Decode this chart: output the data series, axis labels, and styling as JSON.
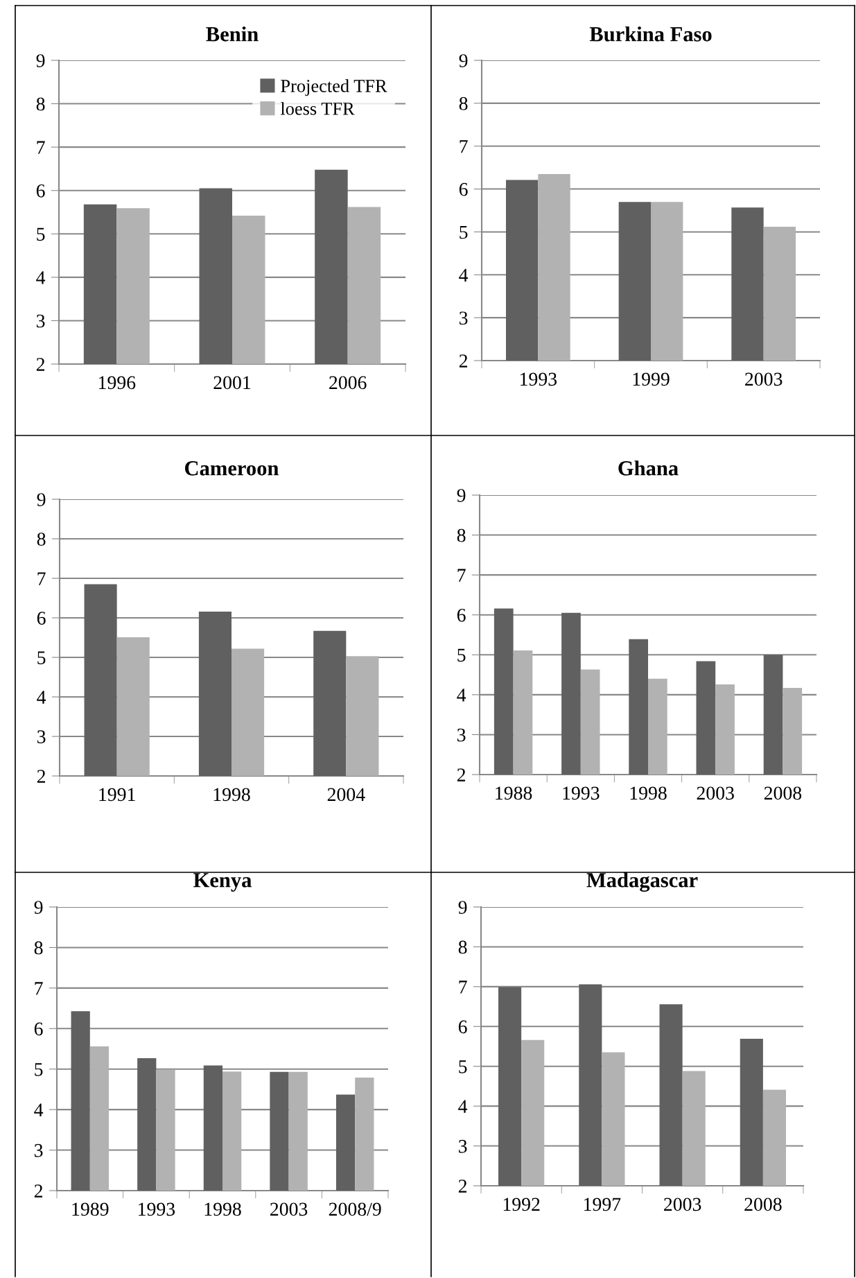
{
  "chart_data": [
    {
      "type": "bar",
      "title": "Benin",
      "categories": [
        "1996",
        "2001",
        "2006"
      ],
      "series": [
        {
          "name": "Projected TFR",
          "color": "#606060",
          "values": [
            5.68,
            6.05,
            6.48
          ]
        },
        {
          "name": "loess TFR",
          "color": "#b2b2b2",
          "values": [
            5.59,
            5.42,
            5.62
          ]
        }
      ],
      "ylim": [
        2,
        9
      ],
      "yticks": [
        2,
        3,
        4,
        5,
        6,
        7,
        8,
        9
      ],
      "grid": "y",
      "legend": "top right"
    },
    {
      "type": "bar",
      "title": "Burkina Faso",
      "categories": [
        "1993",
        "1999",
        "2003"
      ],
      "series": [
        {
          "color": "#606060",
          "values": [
            6.21,
            5.7,
            5.57
          ]
        },
        {
          "color": "#b2b2b2",
          "values": [
            6.35,
            5.7,
            5.12
          ]
        }
      ],
      "ylim": [
        2,
        9
      ],
      "yticks": [
        2,
        3,
        4,
        5,
        6,
        7,
        8,
        9
      ],
      "grid": "y"
    },
    {
      "type": "bar",
      "title": "Cameroon",
      "categories": [
        "1991",
        "1998",
        "2004"
      ],
      "series": [
        {
          "color": "#606060",
          "values": [
            6.85,
            6.16,
            5.67
          ]
        },
        {
          "color": "#b2b2b2",
          "values": [
            5.51,
            5.22,
            5.03
          ]
        }
      ],
      "ylim": [
        2,
        9
      ],
      "yticks": [
        2,
        3,
        4,
        5,
        6,
        7,
        8,
        9
      ],
      "grid": "y"
    },
    {
      "type": "bar",
      "title": "Ghana",
      "categories": [
        "1988",
        "1993",
        "1998",
        "2003",
        "2008"
      ],
      "series": [
        {
          "color": "#606060",
          "values": [
            6.16,
            6.05,
            5.39,
            4.84,
            5.0
          ]
        },
        {
          "color": "#b2b2b2",
          "values": [
            5.11,
            4.63,
            4.4,
            4.26,
            4.17
          ]
        }
      ],
      "ylim": [
        2,
        9
      ],
      "yticks": [
        2,
        3,
        4,
        5,
        6,
        7,
        8,
        9
      ],
      "grid": "y"
    },
    {
      "type": "bar",
      "title": "Kenya",
      "categories": [
        "1989",
        "1993",
        "1998",
        "2003",
        "2008/9"
      ],
      "series": [
        {
          "color": "#606060",
          "values": [
            6.43,
            5.27,
            5.09,
            4.93,
            4.37
          ]
        },
        {
          "color": "#b2b2b2",
          "values": [
            5.56,
            4.98,
            4.94,
            4.93,
            4.79
          ]
        }
      ],
      "ylim": [
        2,
        9
      ],
      "yticks": [
        2,
        3,
        4,
        5,
        6,
        7,
        8,
        9
      ],
      "grid": "y"
    },
    {
      "type": "bar",
      "title": "Madagascar",
      "categories": [
        "1992",
        "1997",
        "2003",
        "2008"
      ],
      "series": [
        {
          "color": "#606060",
          "values": [
            6.99,
            7.06,
            6.56,
            5.69
          ]
        },
        {
          "color": "#b2b2b2",
          "values": [
            5.66,
            5.35,
            4.88,
            4.41
          ]
        }
      ],
      "ylim": [
        2,
        9
      ],
      "yticks": [
        2,
        3,
        4,
        5,
        6,
        7,
        8,
        9
      ],
      "grid": "y"
    }
  ]
}
